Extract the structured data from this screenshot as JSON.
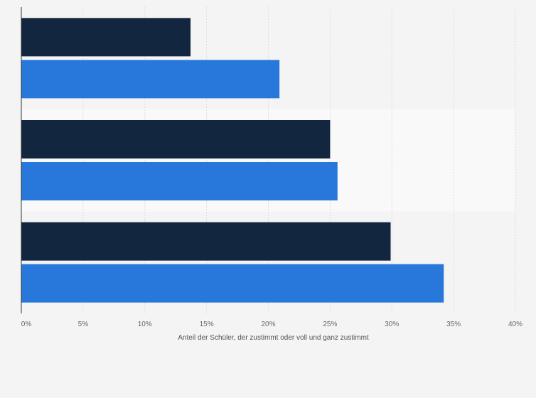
{
  "chart_data": {
    "type": "bar",
    "orientation": "horizontal",
    "title": "",
    "xlabel": "Anteil der Schüler, der zustimmt oder voll und ganz zustimmt",
    "ylabel": "",
    "xlim": [
      0,
      40
    ],
    "x_ticks": [
      0,
      5,
      10,
      15,
      20,
      25,
      30,
      35,
      40
    ],
    "x_tick_labels": [
      "0%",
      "5%",
      "10%",
      "15%",
      "20%",
      "25%",
      "30%",
      "35%",
      "40%"
    ],
    "categories": [
      "",
      "",
      ""
    ],
    "series": [
      {
        "color": "#13263f",
        "values": [
          13.7,
          25.0,
          29.9
        ]
      },
      {
        "color": "#2878dc",
        "values": [
          20.9,
          25.6,
          34.2
        ]
      }
    ],
    "grid": "vertical",
    "legend": "none"
  },
  "colors": {
    "background": "#f4f4f4",
    "band_alternate": "#f9f9f9",
    "grid": "#dddddd",
    "axis": "#333333"
  }
}
